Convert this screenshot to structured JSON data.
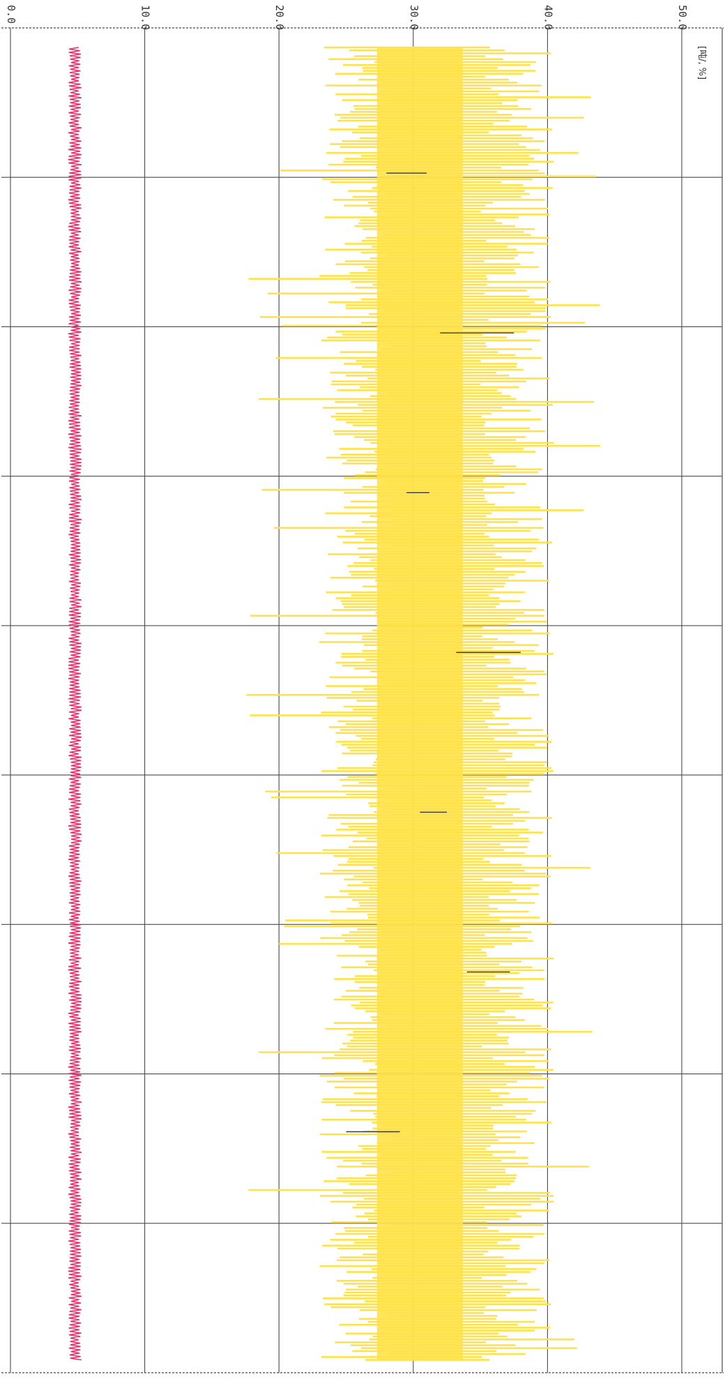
{
  "chart_data": {
    "type": "line",
    "orientation": "rotated-90",
    "value_axis": {
      "position": "top",
      "range": [
        0,
        50
      ],
      "ticks": [
        0,
        10,
        20,
        30,
        40,
        50
      ],
      "tick_labels": [
        "0.0",
        "10.0",
        "20.0",
        "30.0",
        "40.0",
        "50.0"
      ],
      "unit_label": "[吨/, %]"
    },
    "grid": true,
    "series": [
      {
        "color": "#ffe24a",
        "style": "dense-oscillation",
        "center": 30.5,
        "band_low": 23.0,
        "band_high": 40.5,
        "extreme_low": 17.5,
        "extreme_high": 44.0
      },
      {
        "color": "#e8306b",
        "style": "dense-oscillation",
        "center": 4.8,
        "band_low": 4.3,
        "band_high": 5.3
      }
    ]
  },
  "colors": {
    "grid": "#4a4a4a",
    "background": "#ffffff",
    "median_mark": "#3a3a3a"
  }
}
